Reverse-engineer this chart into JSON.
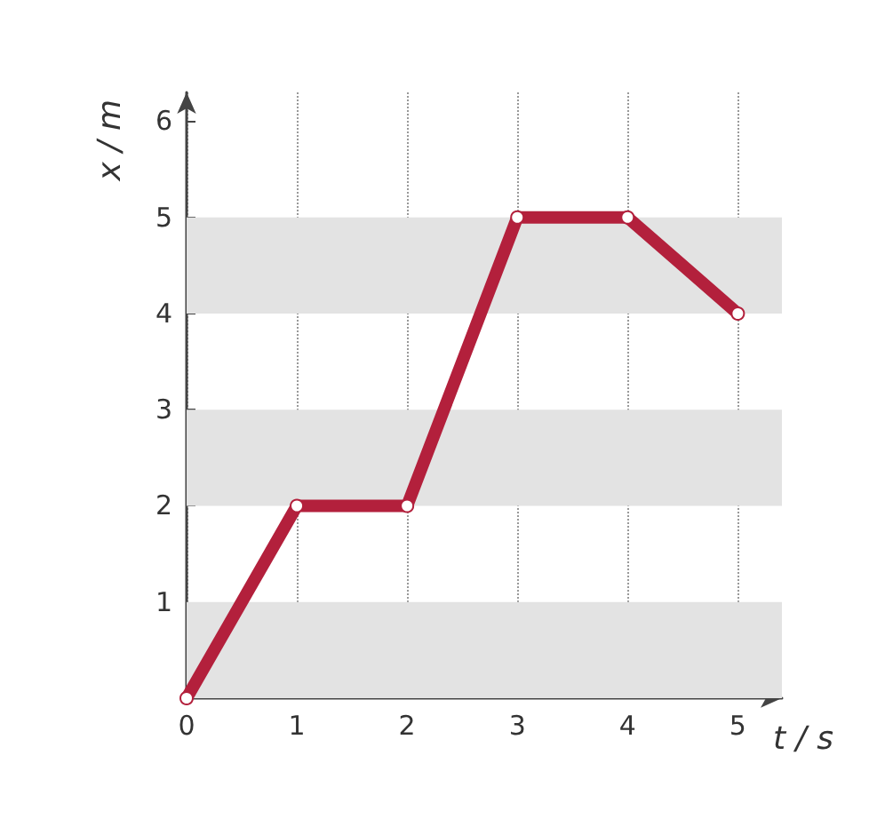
{
  "chart_data": {
    "type": "line",
    "xlabel": "t / s",
    "ylabel": "x / m",
    "x": [
      0,
      1,
      2,
      3,
      4,
      5
    ],
    "series": [
      {
        "color": "#b3203c",
        "values": [
          0,
          2,
          2,
          5,
          5,
          4
        ]
      }
    ],
    "xlim": [
      0,
      5.4
    ],
    "ylim": [
      0,
      6.3
    ],
    "xticks": [
      0,
      1,
      2,
      3,
      4,
      5
    ],
    "yticks": [
      1,
      2,
      3,
      4,
      5,
      6
    ],
    "grid": "x",
    "marker": "circle",
    "line_style": "solid",
    "bands": [
      {
        "axis": "y",
        "from": 0,
        "to": 1,
        "color": "#e3e3e3"
      },
      {
        "axis": "y",
        "from": 2,
        "to": 3,
        "color": "#e3e3e3"
      },
      {
        "axis": "y",
        "from": 4,
        "to": 5,
        "color": "#e3e3e3"
      }
    ]
  }
}
